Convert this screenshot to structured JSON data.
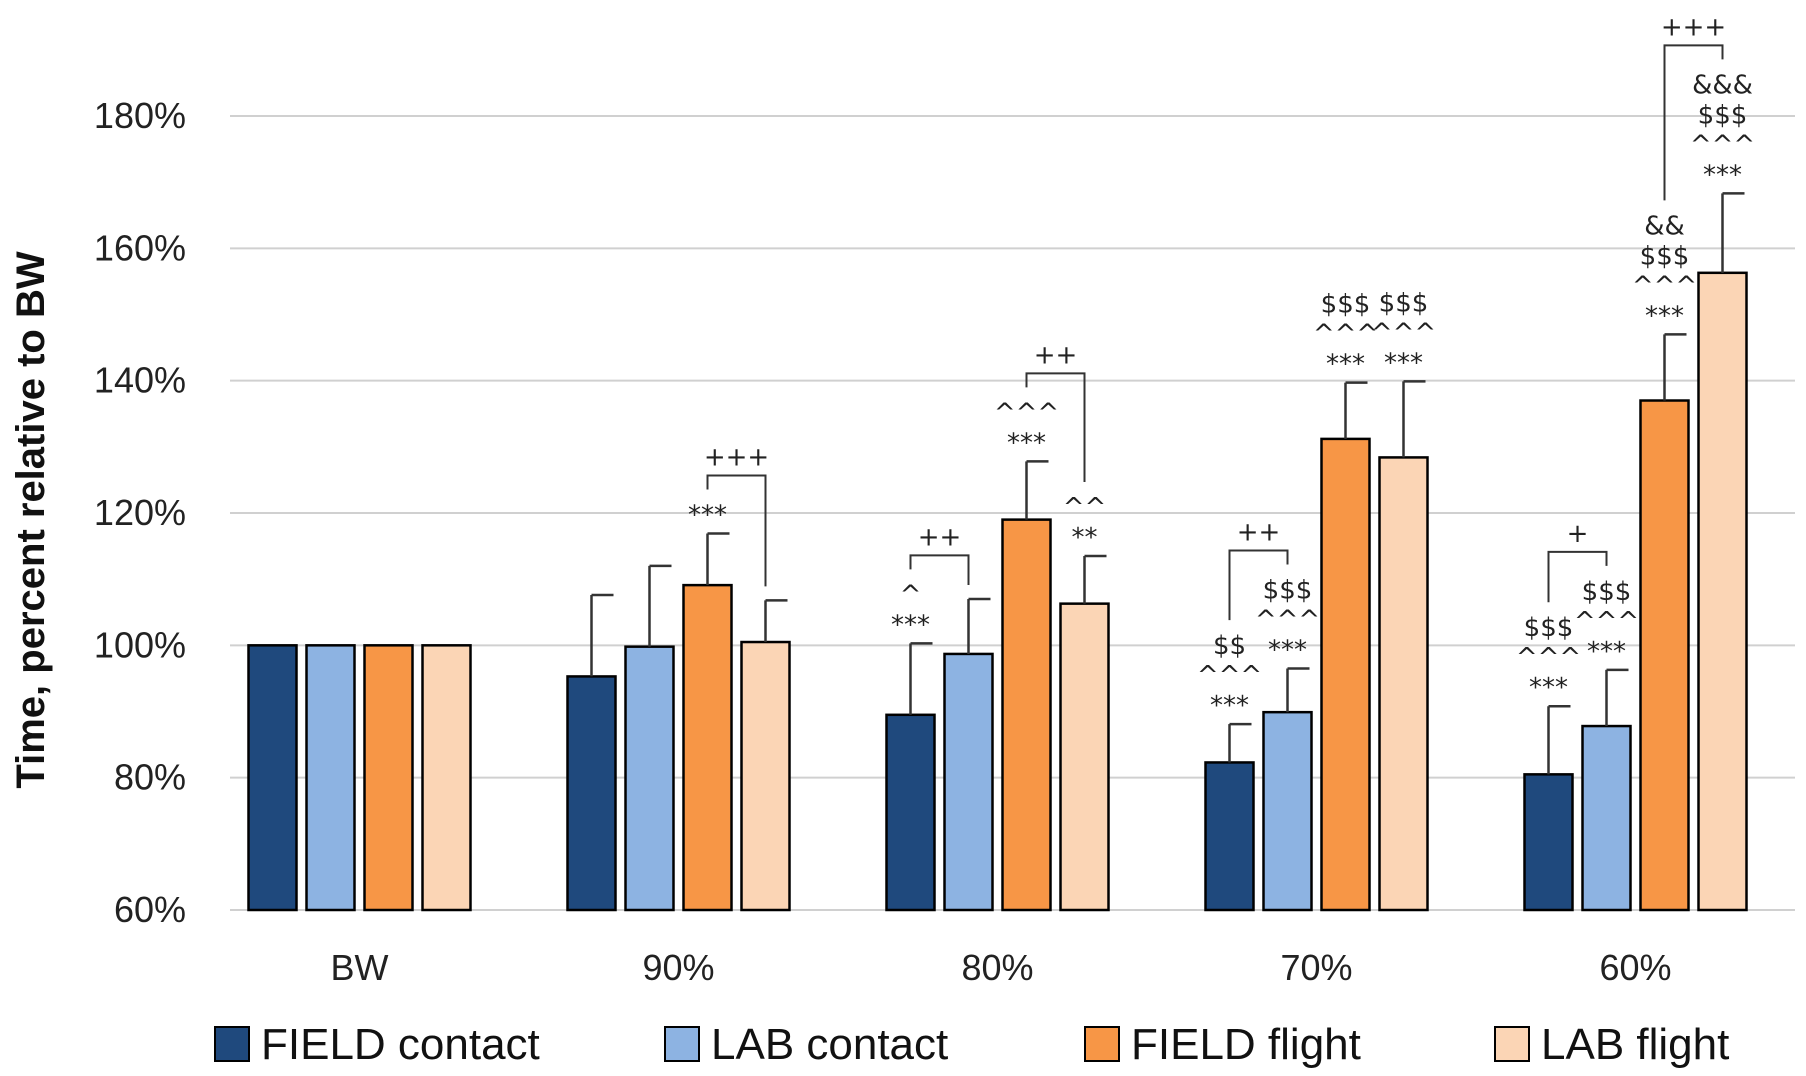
{
  "chart_data": {
    "type": "bar",
    "ylabel": "Time, percent relative to BW",
    "xlabel": "",
    "ylim": [
      60,
      180
    ],
    "yticks": [
      60,
      80,
      100,
      120,
      140,
      160,
      180
    ],
    "ytick_labels": [
      "60%",
      "80%",
      "100%",
      "120%",
      "140%",
      "160%",
      "180%"
    ],
    "grid": true,
    "legend_position": "bottom",
    "categories": [
      "BW",
      "90%",
      "80%",
      "70%",
      "60%"
    ],
    "series": [
      {
        "name": "FIELD contact",
        "color": "#1f497d",
        "values": [
          100,
          95.3,
          89.5,
          82.3,
          80.5
        ],
        "errors": [
          0,
          12.3,
          10.8,
          5.8,
          10.3
        ],
        "annotations": [
          [],
          [],
          [
            "^",
            "***"
          ],
          [
            "$$",
            "^^^",
            "***"
          ],
          [
            "$$$",
            "^^^",
            "***"
          ]
        ]
      },
      {
        "name": "LAB contact",
        "color": "#8db3e2",
        "values": [
          100,
          99.8,
          98.7,
          89.9,
          87.8
        ],
        "errors": [
          0,
          12.2,
          8.3,
          6.6,
          8.5
        ],
        "annotations": [
          [],
          [],
          [],
          [
            "$$$",
            "^^^",
            "***"
          ],
          [
            "$$$",
            "^^^",
            "***"
          ]
        ]
      },
      {
        "name": "FIELD flight",
        "color": "#f79646",
        "values": [
          100,
          109.1,
          119,
          131.2,
          137
        ],
        "errors": [
          0,
          7.8,
          8.8,
          8.5,
          10
        ],
        "annotations": [
          [],
          [
            "***"
          ],
          [
            "^^^",
            "***"
          ],
          [
            "$$$",
            "^^^",
            "***"
          ],
          [
            "&&",
            "$$$",
            "^^^",
            "***"
          ]
        ]
      },
      {
        "name": "LAB flight",
        "color": "#fbd5b5",
        "values": [
          100,
          100.5,
          106.3,
          128.4,
          156.3
        ],
        "errors": [
          0,
          6.3,
          7.2,
          11.5,
          12
        ],
        "annotations": [
          [],
          [],
          [
            "^^",
            "**"
          ],
          [
            "$$$",
            "^^^",
            "***"
          ],
          [
            "&&&",
            "$$$",
            "^^^",
            "***"
          ]
        ]
      }
    ],
    "brackets": [
      {
        "category": 1,
        "from_series": 2,
        "to_series": 3,
        "label": "+++"
      },
      {
        "category": 2,
        "from_series": 0,
        "to_series": 1,
        "label": "++"
      },
      {
        "category": 2,
        "from_series": 2,
        "to_series": 3,
        "label": "++"
      },
      {
        "category": 3,
        "from_series": 0,
        "to_series": 1,
        "label": "++"
      },
      {
        "category": 4,
        "from_series": 0,
        "to_series": 1,
        "label": "+"
      },
      {
        "category": 4,
        "from_series": 2,
        "to_series": 3,
        "label": "+++"
      }
    ]
  }
}
